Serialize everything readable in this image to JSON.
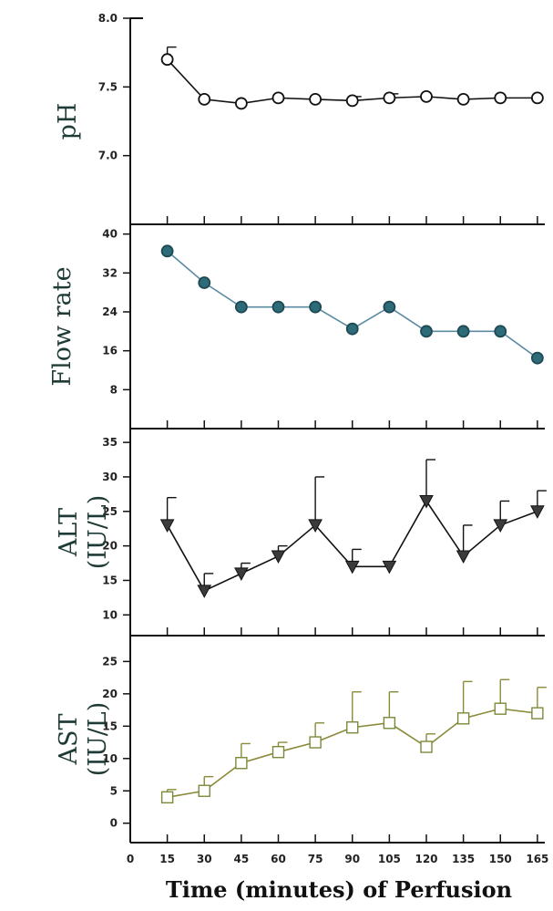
{
  "chart_data": [
    {
      "type": "line",
      "ylabel": [
        "pH"
      ],
      "x": [
        15,
        30,
        45,
        60,
        75,
        90,
        105,
        120,
        135,
        150,
        165
      ],
      "series": [
        {
          "values": [
            7.7,
            7.41,
            7.38,
            7.42,
            7.41,
            7.4,
            7.42,
            7.43,
            7.41,
            7.42,
            7.42
          ],
          "error": [
            0.09,
            0,
            0,
            0,
            0,
            0.03,
            0.03,
            0,
            0,
            0,
            0
          ]
        }
      ],
      "ylim": [
        6.5,
        8.0
      ],
      "yticks": [
        "8.0",
        "7.5",
        "7.0"
      ],
      "ytick_values": [
        8.0,
        7.5,
        7.0
      ],
      "marker": "open-circle",
      "colors": {
        "line": "#111111",
        "marker_fill": "#ffffff",
        "marker_edge": "#111111"
      }
    },
    {
      "type": "line",
      "ylabel": [
        "Flow rate"
      ],
      "x": [
        15,
        30,
        45,
        60,
        75,
        90,
        105,
        120,
        135,
        150,
        165
      ],
      "series": [
        {
          "values": [
            36.5,
            30,
            25,
            25,
            25,
            20.5,
            25,
            20,
            20,
            20,
            14.5
          ],
          "error": [
            0,
            0,
            0,
            0,
            0,
            0,
            0,
            0,
            0,
            0,
            0
          ]
        }
      ],
      "ylim": [
        0,
        42
      ],
      "yticks": [
        "40",
        "32",
        "24",
        "16",
        "8"
      ],
      "ytick_values": [
        40,
        32,
        24,
        16,
        8
      ],
      "marker": "filled-circle",
      "colors": {
        "line": "#5b8aa3",
        "marker_fill": "#2e6b78",
        "marker_edge": "#1d4a54"
      }
    },
    {
      "type": "line",
      "ylabel": [
        "ALT",
        "(IU/L)"
      ],
      "x": [
        15,
        30,
        45,
        60,
        75,
        90,
        105,
        120,
        135,
        150,
        165
      ],
      "series": [
        {
          "values": [
            23,
            13.5,
            16,
            18.5,
            23,
            17,
            17,
            26.5,
            18.5,
            23,
            25
          ],
          "error": [
            4,
            2.5,
            1.5,
            1.5,
            7,
            2.5,
            0,
            6,
            4.5,
            3.5,
            3
          ]
        }
      ],
      "ylim": [
        7,
        37
      ],
      "yticks": [
        "35",
        "30",
        "25",
        "20",
        "15",
        "10"
      ],
      "ytick_values": [
        35,
        30,
        25,
        20,
        15,
        10
      ],
      "marker": "filled-triangle-down",
      "colors": {
        "line": "#111111",
        "marker_fill": "#3b3b3b",
        "marker_edge": "#111111"
      }
    },
    {
      "type": "line",
      "ylabel": [
        "AST",
        "(IU/L)"
      ],
      "x": [
        15,
        30,
        45,
        60,
        75,
        90,
        105,
        120,
        135,
        150,
        165
      ],
      "series": [
        {
          "values": [
            4,
            5,
            9.3,
            11,
            12.5,
            14.8,
            15.5,
            11.8,
            16.2,
            17.7,
            17
          ],
          "error": [
            1.2,
            2.2,
            3,
            1.5,
            3,
            5.5,
            4.8,
            2,
            5.7,
            4.5,
            4
          ]
        }
      ],
      "ylim": [
        -3,
        29
      ],
      "yticks": [
        "25",
        "20",
        "15",
        "10",
        "5",
        "0"
      ],
      "ytick_values": [
        25,
        20,
        15,
        10,
        5,
        0
      ],
      "marker": "open-square",
      "colors": {
        "line": "#8a8a3a",
        "marker_fill": "#ffffff",
        "marker_edge": "#7a8a3a"
      }
    }
  ],
  "xaxis": {
    "xlim": [
      0,
      168
    ],
    "ticks": [
      "0",
      "15",
      "30",
      "45",
      "60",
      "75",
      "90",
      "105",
      "120",
      "135",
      "150",
      "165"
    ],
    "tick_values": [
      0,
      15,
      30,
      45,
      60,
      75,
      90,
      105,
      120,
      135,
      150,
      165
    ],
    "xlabel": "Time (minutes) of Perfusion"
  },
  "colors": {
    "axis": "#111111",
    "background": "#ffffff"
  }
}
